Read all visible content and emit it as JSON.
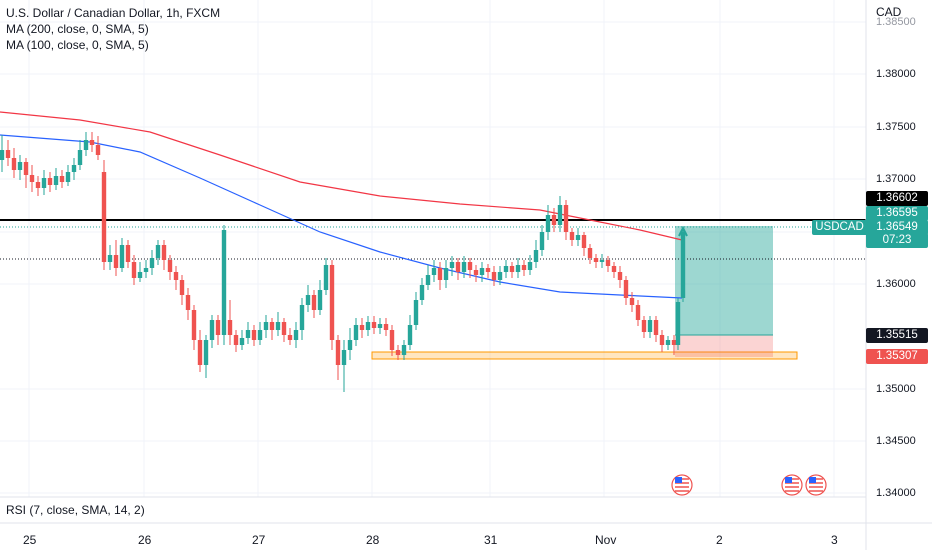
{
  "legend": {
    "title": "U.S. Dollar / Canadian Dollar, 1h, FXCM",
    "ma200": "MA (200, close, 0, SMA, 5)",
    "ma100": "MA (100, close, 0, SMA, 5)"
  },
  "rsi_legend": "RSI (7, close, SMA, 14, 2)",
  "axis": {
    "currency": "CAD",
    "price_ticks": [
      "1.38500",
      "1.38000",
      "1.37500",
      "1.37000",
      "1.36000",
      "1.35000",
      "1.34500",
      "1.34000"
    ],
    "date_ticks": [
      "25",
      "26",
      "27",
      "28",
      "31",
      "Nov",
      "2",
      "3"
    ]
  },
  "badges": {
    "resistance": "1.36602",
    "take_profit": "1.36595",
    "current_price": "1.36549",
    "countdown": "07:23",
    "entry": "1.35515",
    "stop_loss": "1.35307",
    "symbol_tag": "USDCAD"
  },
  "colors": {
    "bull": "#26a69a",
    "bear": "#ef5350",
    "ma200": "#f23645",
    "ma100": "#2962ff",
    "support_zone": "#ffb74d",
    "profit_zone": "#26a69a",
    "loss_zone": "#ef5350"
  },
  "icons": [
    "us-flag-icon",
    "us-flag-icon",
    "us-flag-icon"
  ]
}
